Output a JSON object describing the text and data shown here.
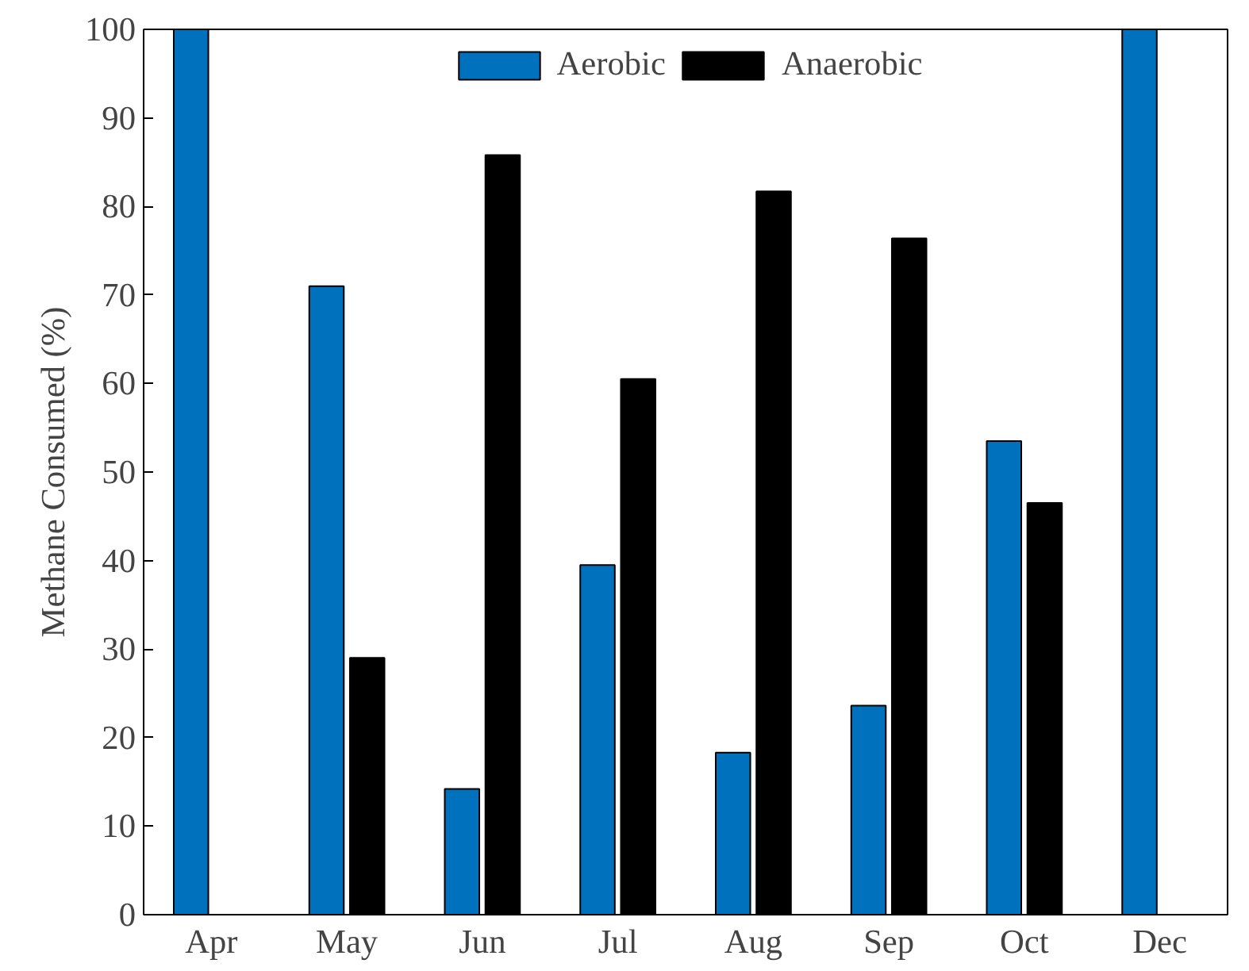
{
  "chart_data": {
    "type": "bar",
    "ylabel": "Methane Consumed (%)",
    "categories": [
      "Apr",
      "May",
      "Jun",
      "Jul",
      "Aug",
      "Sep",
      "Oct",
      "Dec"
    ],
    "series": [
      {
        "name": "Aerobic",
        "color": "#0072bd",
        "values": [
          100,
          71,
          14.2,
          39.5,
          18.3,
          23.6,
          53.5,
          100
        ]
      },
      {
        "name": "Anaerobic",
        "color": "#000000",
        "values": [
          null,
          29,
          85.8,
          60.5,
          81.7,
          76.4,
          46.5,
          null
        ]
      }
    ],
    "ylim": [
      0,
      100
    ],
    "yticks": [
      0,
      10,
      20,
      30,
      40,
      50,
      60,
      70,
      80,
      90,
      100
    ],
    "grid": false,
    "legend": "top"
  }
}
